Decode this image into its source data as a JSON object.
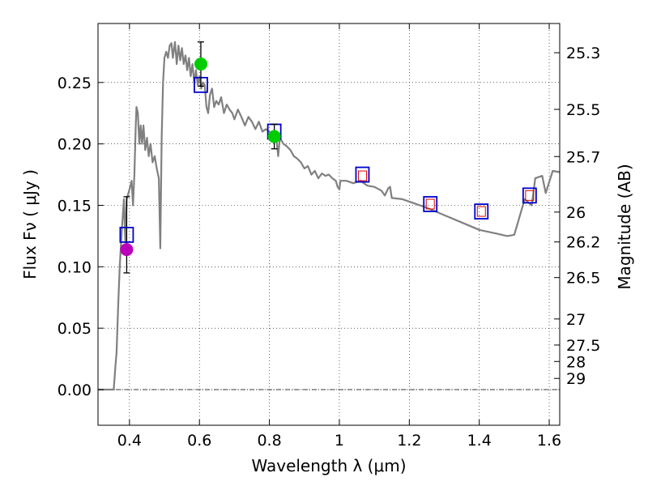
{
  "chart_data": {
    "type": "scatter",
    "xlabel": "Wavelength  λ (μm)",
    "ylabel": "Flux  Fν  ( μJy )",
    "ylabel_right": "Magnitude (AB)",
    "xlim": [
      0.31,
      1.63
    ],
    "ylim": [
      -0.029,
      0.298
    ],
    "grid": true,
    "x_ticks": [
      0.4,
      0.6,
      0.8,
      1.0,
      1.2,
      1.4,
      1.6
    ],
    "x_tick_labels": [
      "0.4",
      "0.6",
      "0.8",
      "1",
      "1.2",
      "1.4",
      "1.6"
    ],
    "y_ticks": [
      0.0,
      0.05,
      0.1,
      0.15,
      0.2,
      0.25
    ],
    "y_tick_labels": [
      "0.00",
      "0.05",
      "0.10",
      "0.15",
      "0.20",
      "0.25"
    ],
    "right_ticks": [
      {
        "label": "25.3",
        "flux": 0.2742
      },
      {
        "label": "25.5",
        "flux": 0.2281
      },
      {
        "label": "25.7",
        "flux": 0.1897
      },
      {
        "label": "26",
        "flux": 0.1445
      },
      {
        "label": "26.2",
        "flux": 0.1202
      },
      {
        "label": "26.5",
        "flux": 0.0912
      },
      {
        "label": "27",
        "flux": 0.0575
      },
      {
        "label": "27.5",
        "flux": 0.0363
      },
      {
        "label": "28",
        "flux": 0.0229
      },
      {
        "label": "29",
        "flux": 0.0091
      }
    ],
    "sed_model": {
      "color": "#808080",
      "points": [
        [
          0.31,
          0.0
        ],
        [
          0.355,
          0.0
        ],
        [
          0.36,
          0.02
        ],
        [
          0.363,
          0.03
        ],
        [
          0.368,
          0.07
        ],
        [
          0.372,
          0.1
        ],
        [
          0.378,
          0.13
        ],
        [
          0.384,
          0.155
        ],
        [
          0.388,
          0.12
        ],
        [
          0.392,
          0.155
        ],
        [
          0.397,
          0.16
        ],
        [
          0.402,
          0.165
        ],
        [
          0.406,
          0.17
        ],
        [
          0.41,
          0.15
        ],
        [
          0.414,
          0.175
        ],
        [
          0.418,
          0.215
        ],
        [
          0.42,
          0.23
        ],
        [
          0.424,
          0.225
        ],
        [
          0.428,
          0.2
        ],
        [
          0.432,
          0.215
        ],
        [
          0.436,
          0.2
        ],
        [
          0.44,
          0.215
        ],
        [
          0.445,
          0.195
        ],
        [
          0.45,
          0.205
        ],
        [
          0.455,
          0.19
        ],
        [
          0.46,
          0.2
        ],
        [
          0.466,
          0.185
        ],
        [
          0.472,
          0.19
        ],
        [
          0.478,
          0.18
        ],
        [
          0.484,
          0.172
        ],
        [
          0.488,
          0.115
        ],
        [
          0.492,
          0.205
        ],
        [
          0.496,
          0.25
        ],
        [
          0.5,
          0.27
        ],
        [
          0.505,
          0.275
        ],
        [
          0.51,
          0.27
        ],
        [
          0.515,
          0.28
        ],
        [
          0.52,
          0.282
        ],
        [
          0.524,
          0.27
        ],
        [
          0.53,
          0.283
        ],
        [
          0.535,
          0.265
        ],
        [
          0.54,
          0.28
        ],
        [
          0.545,
          0.268
        ],
        [
          0.55,
          0.278
        ],
        [
          0.555,
          0.265
        ],
        [
          0.56,
          0.272
        ],
        [
          0.565,
          0.26
        ],
        [
          0.57,
          0.27
        ],
        [
          0.575,
          0.255
        ],
        [
          0.58,
          0.265
        ],
        [
          0.585,
          0.25
        ],
        [
          0.59,
          0.26
        ],
        [
          0.595,
          0.248
        ],
        [
          0.6,
          0.255
        ],
        [
          0.605,
          0.245
        ],
        [
          0.61,
          0.25
        ],
        [
          0.615,
          0.248
        ],
        [
          0.62,
          0.23
        ],
        [
          0.625,
          0.225
        ],
        [
          0.63,
          0.24
        ],
        [
          0.636,
          0.245
        ],
        [
          0.642,
          0.23
        ],
        [
          0.648,
          0.235
        ],
        [
          0.655,
          0.232
        ],
        [
          0.662,
          0.238
        ],
        [
          0.67,
          0.225
        ],
        [
          0.678,
          0.232
        ],
        [
          0.686,
          0.228
        ],
        [
          0.694,
          0.225
        ],
        [
          0.7,
          0.22
        ],
        [
          0.71,
          0.228
        ],
        [
          0.72,
          0.222
        ],
        [
          0.73,
          0.215
        ],
        [
          0.74,
          0.222
        ],
        [
          0.75,
          0.218
        ],
        [
          0.76,
          0.212
        ],
        [
          0.77,
          0.218
        ],
        [
          0.78,
          0.21
        ],
        [
          0.79,
          0.212
        ],
        [
          0.8,
          0.21
        ],
        [
          0.81,
          0.205
        ],
        [
          0.82,
          0.205
        ],
        [
          0.825,
          0.19
        ],
        [
          0.83,
          0.205
        ],
        [
          0.84,
          0.2
        ],
        [
          0.85,
          0.198
        ],
        [
          0.86,
          0.195
        ],
        [
          0.87,
          0.19
        ],
        [
          0.88,
          0.188
        ],
        [
          0.89,
          0.185
        ],
        [
          0.9,
          0.18
        ],
        [
          0.91,
          0.182
        ],
        [
          0.92,
          0.175
        ],
        [
          0.93,
          0.178
        ],
        [
          0.94,
          0.172
        ],
        [
          0.95,
          0.176
        ],
        [
          0.96,
          0.174
        ],
        [
          0.97,
          0.175
        ],
        [
          0.98,
          0.172
        ],
        [
          0.99,
          0.17
        ],
        [
          0.995,
          0.165
        ],
        [
          1.0,
          0.163
        ],
        [
          1.003,
          0.17
        ],
        [
          1.02,
          0.17
        ],
        [
          1.04,
          0.168
        ],
        [
          1.06,
          0.17
        ],
        [
          1.08,
          0.166
        ],
        [
          1.1,
          0.165
        ],
        [
          1.12,
          0.162
        ],
        [
          1.13,
          0.158
        ],
        [
          1.14,
          0.164
        ],
        [
          1.145,
          0.165
        ],
        [
          1.15,
          0.156
        ],
        [
          1.18,
          0.155
        ],
        [
          1.2,
          0.153
        ],
        [
          1.25,
          0.148
        ],
        [
          1.3,
          0.142
        ],
        [
          1.35,
          0.136
        ],
        [
          1.4,
          0.13
        ],
        [
          1.45,
          0.127
        ],
        [
          1.48,
          0.125
        ],
        [
          1.5,
          0.126
        ],
        [
          1.53,
          0.155
        ],
        [
          1.55,
          0.15
        ],
        [
          1.56,
          0.172
        ],
        [
          1.58,
          0.174
        ],
        [
          1.59,
          0.16
        ],
        [
          1.61,
          0.178
        ],
        [
          1.63,
          0.177
        ]
      ]
    },
    "series": [
      {
        "marker": "square-outline",
        "color": "#0000cc",
        "points": [
          {
            "x": 0.392,
            "y": 0.126,
            "err": 0.031
          },
          {
            "x": 0.604,
            "y": 0.248,
            "err": 0.0
          },
          {
            "x": 0.814,
            "y": 0.21,
            "err": 0.0
          },
          {
            "x": 1.066,
            "y": 0.175,
            "err": 0.0
          },
          {
            "x": 1.26,
            "y": 0.151,
            "err": 0.0
          },
          {
            "x": 1.406,
            "y": 0.145,
            "err": 0.0
          },
          {
            "x": 1.544,
            "y": 0.158,
            "err": 0.0
          }
        ]
      },
      {
        "marker": "square-small",
        "color": "#dd0000",
        "points": [
          {
            "x": 1.066,
            "y": 0.174
          },
          {
            "x": 1.26,
            "y": 0.151
          },
          {
            "x": 1.406,
            "y": 0.145
          },
          {
            "x": 1.544,
            "y": 0.158
          }
        ]
      },
      {
        "marker": "circle",
        "color": "#00cc00",
        "points": [
          {
            "x": 0.604,
            "y": 0.265,
            "err": 0.018
          },
          {
            "x": 0.814,
            "y": 0.206,
            "err": 0.01
          }
        ]
      },
      {
        "marker": "circle",
        "color": "#bb00bb",
        "points": [
          {
            "x": 0.392,
            "y": 0.114
          }
        ]
      }
    ]
  }
}
